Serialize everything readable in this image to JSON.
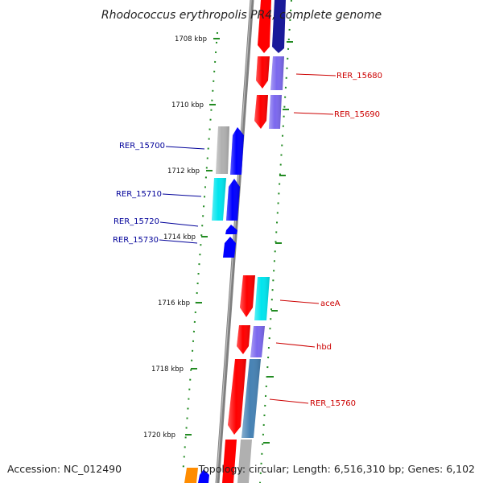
{
  "title": "Rhodococcus erythropolis PR4, complete genome",
  "footer": {
    "accession": "Accession: NC_012490",
    "topology": "Topology: circular; Length: 6,516,310 bp; Genes: 6,102"
  },
  "ticks": [
    "1708 kbp",
    "1710 kbp",
    "1712 kbp",
    "1714 kbp",
    "1716 kbp",
    "1718 kbp",
    "1720 kbp"
  ],
  "gene_labels": {
    "RER_15680": "RER_15680",
    "RER_15690": "RER_15690",
    "RER_15700": "RER_15700",
    "RER_15710": "RER_15710",
    "RER_15720": "RER_15720",
    "RER_15730": "RER_15730",
    "aceA": "aceA",
    "hbd": "hbd",
    "RER_15760": "RER_15760"
  },
  "colors": {
    "backbone": "#808080",
    "ticks": "#228b22",
    "forward_label": "#cc0000",
    "reverse_label": "#000099",
    "red": "#ff0000",
    "blue": "#0000ff",
    "navy": "#1a1a99",
    "purple": "#7b68ee",
    "cyan": "#00e5ee",
    "grey": "#b0b0b0",
    "steelblue": "#4682b4",
    "orange": "#ff8c00"
  }
}
